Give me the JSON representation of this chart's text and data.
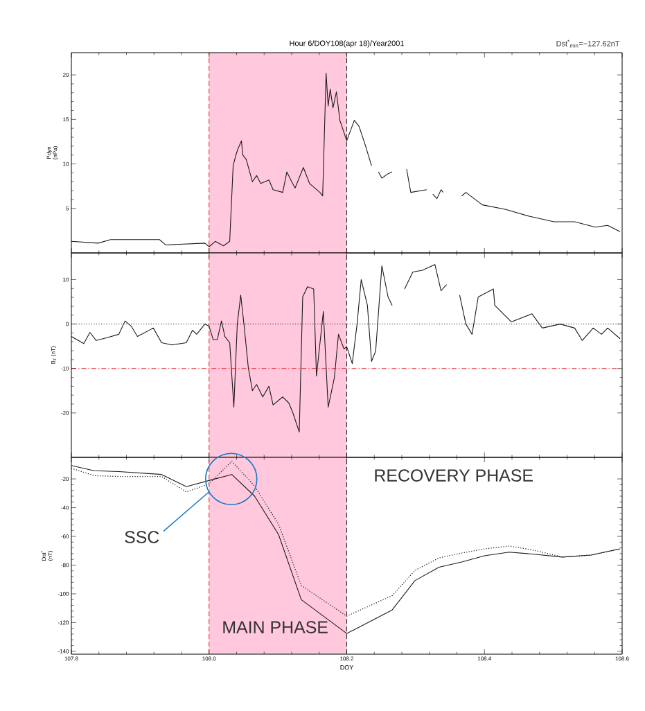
{
  "chart_data": [
    {
      "type": "line",
      "title": "Hour 6/DOY108(apr 18)/Year2001",
      "annotations": [
        "Dst$^{*}$$_{min}$=−127.62nT"
      ],
      "ylabel": "Pdyn (nPa)",
      "color": "#1a1a1a",
      "line_style": "solid",
      "x": [
        107.8,
        107.839,
        107.857,
        107.928,
        107.937,
        107.994,
        108.0,
        108.009,
        108.021,
        108.03,
        108.035,
        108.039,
        108.042,
        108.047,
        108.049,
        108.054,
        108.063,
        108.069,
        108.075,
        108.087,
        108.093,
        108.107,
        108.113,
        108.12,
        108.125,
        108.137,
        108.146,
        108.161,
        108.165,
        108.17,
        108.173,
        108.176,
        108.18,
        108.185,
        108.19,
        108.2,
        108.211,
        108.218,
        108.227,
        108.236,
        108.241,
        108.246,
        108.251,
        108.26,
        108.266,
        108.277,
        108.287,
        108.293,
        108.316,
        108.32,
        108.325,
        108.331,
        108.337,
        108.34,
        108.35,
        108.367,
        108.373,
        108.397,
        108.43,
        108.466,
        108.501,
        108.531,
        108.561,
        108.579,
        108.597
      ],
      "values": [
        1.3,
        1.1,
        1.5,
        1.5,
        0.9,
        1.1,
        0.7,
        1.3,
        0.8,
        1.3,
        9.8,
        11.0,
        11.7,
        12.6,
        11.0,
        10.5,
        8.0,
        8.7,
        7.8,
        8.2,
        7.1,
        6.8,
        9.1,
        8.0,
        7.3,
        9.6,
        7.8,
        6.8,
        6.4,
        20.2,
        16.5,
        18.4,
        16.3,
        18.1,
        14.9,
        12.6,
        14.9,
        14.2,
        12.1,
        9.8,
        null,
        9.1,
        8.4,
        8.9,
        9.1,
        null,
        9.4,
        6.8,
        7.1,
        null,
        6.6,
        6.1,
        7.1,
        6.8,
        null,
        6.4,
        6.8,
        5.4,
        4.9,
        4.1,
        3.5,
        3.5,
        2.9,
        3.1,
        2.4
      ],
      "xlim": [
        107.8,
        108.6
      ],
      "ylim": [
        0,
        22.5
      ],
      "yticks": [
        5,
        10,
        15,
        20
      ],
      "tick_labels": "y",
      "bands": [
        {
          "axis": "x",
          "from": 108.0,
          "to": 108.2,
          "color": "#ffc8dc"
        }
      ],
      "ref_lines": [
        {
          "axis": "x",
          "value": 108.0,
          "color": "#e8202a",
          "line_style": "dashed"
        },
        {
          "axis": "x",
          "value": 108.2,
          "color": "#1a1a1a",
          "line_style": "dashed"
        }
      ]
    },
    {
      "type": "line",
      "ylabel": "B$_{z}$ (nT)",
      "color": "#1a1a1a",
      "line_style": "solid",
      "x": [
        107.8,
        107.818,
        107.827,
        107.836,
        107.851,
        107.869,
        107.878,
        107.887,
        107.896,
        107.919,
        107.931,
        107.946,
        107.967,
        107.976,
        107.982,
        107.994,
        108.0,
        108.006,
        108.012,
        108.018,
        108.023,
        108.03,
        108.036,
        108.041,
        108.046,
        108.051,
        108.057,
        108.063,
        108.069,
        108.078,
        108.087,
        108.093,
        108.107,
        108.116,
        108.122,
        108.131,
        108.136,
        108.143,
        108.152,
        108.156,
        108.166,
        108.173,
        108.182,
        108.188,
        108.196,
        108.2,
        108.208,
        108.215,
        108.221,
        108.23,
        108.236,
        108.242,
        108.251,
        108.26,
        108.266,
        108.275,
        108.284,
        108.296,
        108.31,
        108.328,
        108.337,
        108.345,
        108.355,
        108.364,
        108.373,
        108.382,
        108.391,
        108.413,
        108.415,
        108.439,
        108.469,
        108.484,
        108.51,
        108.531,
        108.542,
        108.558,
        108.57,
        108.579,
        108.597
      ],
      "values": [
        -2.8,
        -4.4,
        -1.9,
        -3.7,
        -3.1,
        -2.3,
        0.7,
        -0.5,
        -2.8,
        -0.9,
        -4.2,
        -4.7,
        -4.2,
        -1.4,
        -2.3,
        0.0,
        -0.5,
        -3.5,
        -3.5,
        0.7,
        -2.8,
        -4.2,
        -18.7,
        0.0,
        6.5,
        -0.5,
        -9.8,
        -15.0,
        -13.6,
        -16.4,
        -14.0,
        -18.2,
        -16.4,
        -17.8,
        -20.1,
        -24.3,
        6.1,
        8.4,
        7.9,
        -11.7,
        2.8,
        -18.7,
        -12.1,
        -2.3,
        -5.6,
        -5.1,
        -8.9,
        0.0,
        10.0,
        4.2,
        -8.4,
        -6.1,
        13.1,
        6.1,
        4.2,
        null,
        7.9,
        11.7,
        12.1,
        13.4,
        7.5,
        8.9,
        null,
        6.5,
        0.0,
        -2.3,
        6.1,
        7.9,
        4.2,
        0.5,
        2.3,
        -0.9,
        0.0,
        -0.9,
        -3.7,
        -0.9,
        -2.3,
        -0.9,
        -3.3
      ],
      "xlim": [
        107.8,
        108.6
      ],
      "ylim": [
        -30,
        16
      ],
      "yticks": [
        -20,
        -10,
        0,
        10
      ],
      "tick_labels": "y",
      "bands": [
        {
          "axis": "x",
          "from": 108.0,
          "to": 108.2,
          "color": "#ffc8dc"
        }
      ],
      "ref_lines": [
        {
          "axis": "x",
          "value": 108.0,
          "color": "#e8202a",
          "line_style": "dashed"
        },
        {
          "axis": "x",
          "value": 108.2,
          "color": "#1a1a1a",
          "line_style": "dashed"
        },
        {
          "axis": "y",
          "value": 0,
          "color": "#1a1a1a",
          "line_style": "dotted"
        },
        {
          "axis": "y",
          "value": -10,
          "color": "#e8202a",
          "line_style": "dashdot"
        }
      ]
    },
    {
      "type": "line",
      "ylabel": "Dst$^{*}$ (nT)",
      "xlabel": "DOY",
      "annotations": [
        "RECOVERY PHASE",
        "MAIN PHASE",
        {
          "text": "SSC",
          "x": 108.0,
          "y": -29
        }
      ],
      "x": [
        107.8,
        107.833,
        107.869,
        107.931,
        107.967,
        108.0,
        108.033,
        108.066,
        108.101,
        108.134,
        108.2,
        108.266,
        108.299,
        108.334,
        108.367,
        108.4,
        108.436,
        108.472,
        108.513,
        108.555,
        108.597
      ],
      "series": [
        {
          "color": "#1a1a1a",
          "line_style": "solid",
          "values": [
            -10.7,
            -14.3,
            -14.9,
            -16.9,
            -25.4,
            -21.1,
            -16.9,
            -31.9,
            -58.8,
            -104.1,
            -127.6,
            -111.2,
            -90.8,
            -81.5,
            -77.8,
            -73.5,
            -71.0,
            -72.4,
            -74.4,
            -73.0,
            -68.7
          ]
        },
        {
          "color": "#1a1a1a",
          "line_style": "dotted",
          "values": [
            -12.6,
            -17.7,
            -18.3,
            -18.3,
            -29.1,
            -23.4,
            -7.8,
            -24.8,
            -51.7,
            -94.2,
            -115.5,
            -101.3,
            -83.7,
            -75.0,
            -71.6,
            -68.7,
            -66.7,
            -69.6,
            -74.4,
            -73.0,
            -68.7
          ]
        }
      ],
      "xlim": [
        107.8,
        108.6
      ],
      "xticks": [
        107.8,
        {
          "value": 108,
          "label": "108.0"
        },
        108.2,
        108.4,
        108.6
      ],
      "ylim": [
        -142,
        -5
      ],
      "yticks": [
        -140,
        -120,
        -100,
        -80,
        -60,
        -40,
        -20
      ],
      "bands": [
        {
          "axis": "x",
          "from": 108.0,
          "to": 108.2,
          "color": "#ffc8dc"
        }
      ],
      "ref_lines": [
        {
          "axis": "x",
          "value": 108.0,
          "color": "#e8202a",
          "line_style": "dashed"
        },
        {
          "axis": "x",
          "value": 108.2,
          "color": "#1a1a1a",
          "line_style": "dashed"
        }
      ]
    }
  ]
}
